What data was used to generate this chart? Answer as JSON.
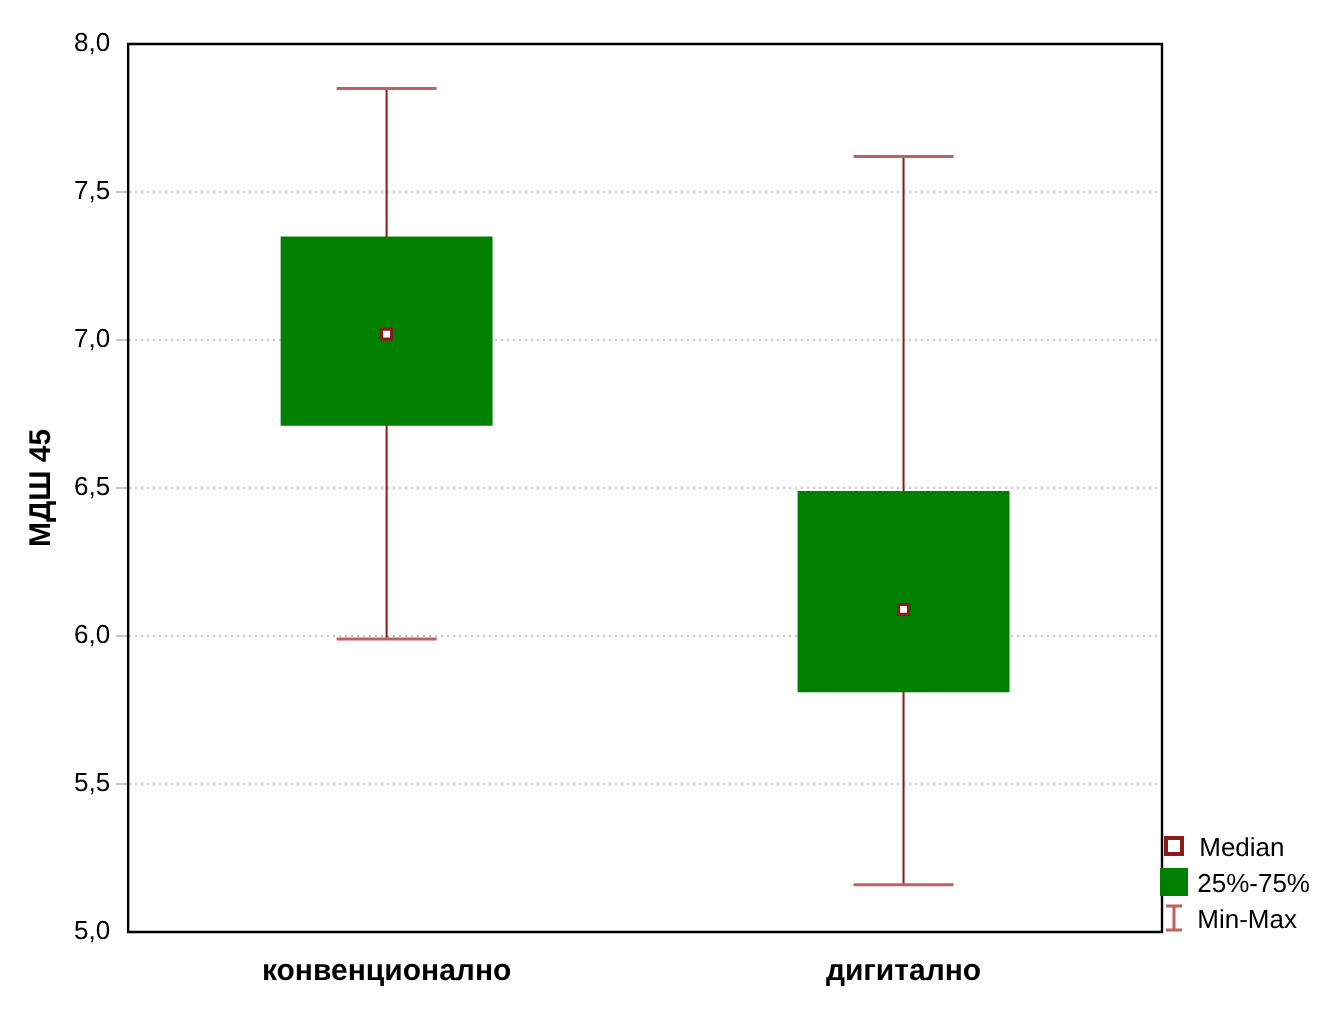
{
  "chart_data": {
    "type": "box",
    "ylabel": "МДШ 45",
    "categories": [
      "конвенционално",
      "дигитално"
    ],
    "series": [
      {
        "name": "25%-75%",
        "color": "#008000",
        "boxes": [
          {
            "low": 5.99,
            "q1": 6.71,
            "median": 7.02,
            "q3": 7.35,
            "high": 7.85
          },
          {
            "low": 5.16,
            "q1": 5.81,
            "median": 6.09,
            "q3": 6.49,
            "high": 7.62
          }
        ]
      }
    ],
    "ylim": [
      5,
      8
    ],
    "yticks": [
      {
        "value": 5,
        "label": "5,0"
      },
      {
        "value": 5.5,
        "label": "5,5"
      },
      {
        "value": 6,
        "label": "6,0"
      },
      {
        "value": 6.5,
        "label": "6,5"
      },
      {
        "value": 7,
        "label": "7,0"
      },
      {
        "value": 7.5,
        "label": "7,5"
      },
      {
        "value": 8,
        "label": "8,0"
      }
    ],
    "grid": "y",
    "legend": "bottom right",
    "annotations": [
      "Median",
      "Min-Max"
    ]
  }
}
